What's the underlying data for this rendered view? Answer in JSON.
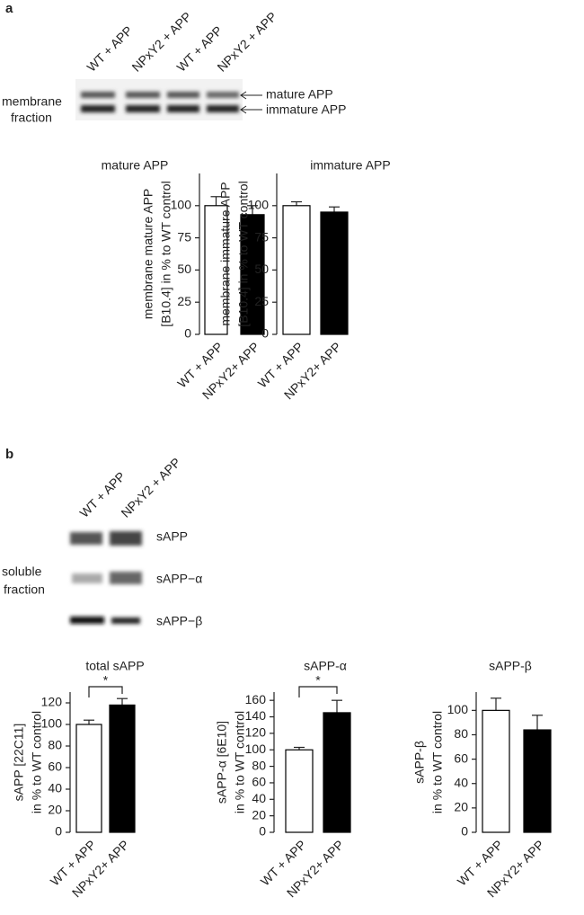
{
  "panels": [
    {
      "label": "a",
      "lanes": [
        "WT + APP",
        "NPxY2 + APP",
        "WT + APP",
        "NPxY2 + APP"
      ],
      "fraction": [
        "membrane",
        "fraction"
      ],
      "bands": [
        "mature APP",
        "immature APP"
      ]
    },
    {
      "label": "b",
      "lanes": [
        "WT + APP",
        "NPxY2 + APP"
      ],
      "fraction": [
        "soluble",
        "fraction"
      ],
      "bands": [
        "sAPP",
        "sAPP−α",
        "sAPP−β"
      ]
    }
  ],
  "chart_data": [
    {
      "type": "bar",
      "title": "mature APP",
      "ylabel": [
        "membrane mature APP",
        "[B10.4] in % to WT control"
      ],
      "categories": [
        "WT + APP",
        "NPxY2+ APP"
      ],
      "values": [
        100,
        93
      ],
      "errors": [
        7,
        7
      ],
      "colors": [
        "#ffffff",
        "#000000"
      ],
      "ylim": [
        0,
        125
      ],
      "yticks": [
        0,
        25,
        50,
        75,
        100
      ]
    },
    {
      "type": "bar",
      "title": "immature APP",
      "ylabel": [
        "membrane immature APP",
        "[B10.4] in % to WT control"
      ],
      "categories": [
        "WT + APP",
        "NPxY2+ APP"
      ],
      "values": [
        100,
        95
      ],
      "errors": [
        3,
        4
      ],
      "colors": [
        "#ffffff",
        "#000000"
      ],
      "ylim": [
        0,
        125
      ],
      "yticks": [
        0,
        25,
        50,
        75,
        100
      ]
    },
    {
      "type": "bar",
      "title": "total sAPP",
      "ylabel": [
        "sAPP [22C11]",
        "in % to WT control"
      ],
      "categories": [
        "WT + APP",
        "NPxY2+ APP"
      ],
      "values": [
        100,
        118
      ],
      "errors": [
        4,
        6
      ],
      "colors": [
        "#ffffff",
        "#000000"
      ],
      "ylim": [
        0,
        130
      ],
      "yticks": [
        0,
        20,
        40,
        60,
        80,
        100,
        120
      ],
      "significance": "*"
    },
    {
      "type": "bar",
      "title": "sAPP-α",
      "ylabel": [
        "sAPP-α [6E10]",
        "in % to WT control"
      ],
      "categories": [
        "WT + APP",
        "NPxY2+ APP"
      ],
      "values": [
        100,
        145
      ],
      "errors": [
        3,
        15
      ],
      "colors": [
        "#ffffff",
        "#000000"
      ],
      "ylim": [
        0,
        170
      ],
      "yticks": [
        0,
        20,
        40,
        60,
        80,
        100,
        120,
        140,
        160
      ],
      "significance": "*"
    },
    {
      "type": "bar",
      "title": "sAPP-β",
      "ylabel": [
        "sAPP-β",
        "in % to WT control"
      ],
      "categories": [
        "WT + APP",
        "NPxY2+ APP"
      ],
      "values": [
        100,
        84
      ],
      "errors": [
        10,
        12
      ],
      "colors": [
        "#ffffff",
        "#000000"
      ],
      "ylim": [
        0,
        115
      ],
      "yticks": [
        0,
        20,
        40,
        60,
        80,
        100
      ]
    }
  ]
}
